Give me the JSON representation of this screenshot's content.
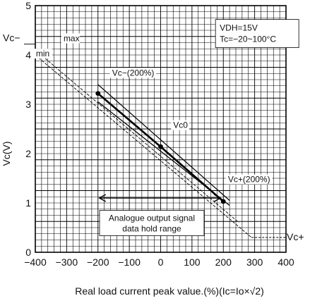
{
  "chart_data": {
    "type": "line",
    "title": "",
    "xlabel": "Real load current peak value.(%)(Ic=Io×√2)",
    "ylabel": "Vc(V)",
    "xlim": [
      -400,
      400
    ],
    "ylim": [
      0,
      5
    ],
    "x_ticks": [
      "-400",
      "-300",
      "-200",
      "-100",
      "0",
      "100",
      "200",
      "300",
      "400"
    ],
    "y_ticks": [
      "0",
      "1",
      "2",
      "3",
      "4",
      "5"
    ],
    "grid": true,
    "conditions": [
      "VDH=15V",
      "Tc=−20~100°C"
    ],
    "range_label": [
      "Analogue output signal",
      "data hold range"
    ],
    "range_x": [
      -200,
      200
    ],
    "range_y": 1.05,
    "series": [
      {
        "name": "",
        "role": "typ",
        "x": [
          -200,
          0,
          200
        ],
        "y": [
          3.22,
          2.14,
          1.03
        ]
      },
      {
        "name": "max",
        "role": "max",
        "x": [
          -400,
          250
        ],
        "y": [
          4.1,
          0.6
        ]
      },
      {
        "name": "min",
        "role": "min",
        "x": [
          -400,
          290
        ],
        "y": [
          4.0,
          0.3
        ]
      },
      {
        "name": "",
        "role": "upper-inner",
        "x": [
          -200,
          220
        ],
        "y": [
          3.4,
          1.05
        ]
      },
      {
        "name": "",
        "role": "lower-inner",
        "x": [
          -200,
          220
        ],
        "y": [
          3.05,
          0.95
        ]
      }
    ],
    "markers": {
      "x": [
        -200,
        0,
        200
      ],
      "y": [
        3.22,
        2.14,
        1.03
      ]
    },
    "annotations": [
      {
        "text": "Vc−(200%)",
        "x": -50,
        "y": 3.2
      },
      {
        "text": "Vc0",
        "x": 0,
        "y": 2.3
      },
      {
        "text": "Vc+(200%)",
        "x": 200,
        "y": 1.0
      }
    ],
    "side_labels": {
      "vc_minus": "Vc−",
      "vc_plus": "Vc+"
    }
  }
}
